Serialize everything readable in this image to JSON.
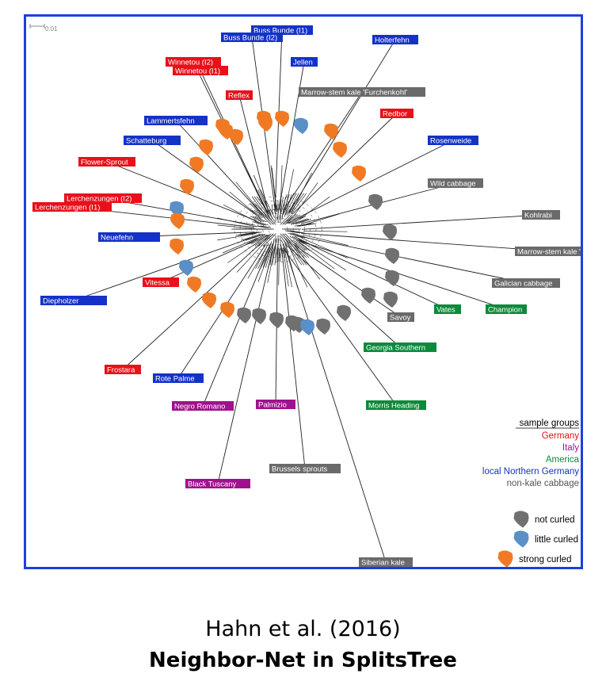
{
  "scale_label": "0.01",
  "colors": {
    "frame": "#1d3fe0",
    "Germany": "#e8101a",
    "Italy": "#a0118d",
    "America": "#0c8a3c",
    "local_northern_germany": "#1432c8",
    "non_kale_cabbage": "#6a6a6a",
    "not_curled": "#707070",
    "little_curled": "#5b8fc8",
    "strong_curled": "#f07a24"
  },
  "taxa": [
    {
      "label": "Buss Bunde (I1)",
      "group": "local_northern_germany",
      "leaf": "strong_curled"
    },
    {
      "label": "Buss Bunde (I2)",
      "group": "local_northern_germany",
      "leaf": "strong_curled"
    },
    {
      "label": "Holterfehn",
      "group": "local_northern_germany",
      "leaf": "strong_curled"
    },
    {
      "label": "Jellen",
      "group": "local_northern_germany",
      "leaf": "strong_curled"
    },
    {
      "label": "Winnetou (I2)",
      "group": "Germany",
      "leaf": "strong_curled"
    },
    {
      "label": "Winnetou (I1)",
      "group": "Germany",
      "leaf": "strong_curled"
    },
    {
      "label": "Marrow-stem kale 'Furchenkohl'",
      "group": "non_kale_cabbage",
      "leaf": "little_curled"
    },
    {
      "label": "Reflex",
      "group": "Germany",
      "leaf": "strong_curled"
    },
    {
      "label": "Redbor",
      "group": "Germany",
      "leaf": "strong_curled"
    },
    {
      "label": "Lammertsfehn",
      "group": "local_northern_germany",
      "leaf": "strong_curled"
    },
    {
      "label": "Rosenweide",
      "group": "local_northern_germany",
      "leaf": "strong_curled"
    },
    {
      "label": "Schatteburg",
      "group": "local_northern_germany",
      "leaf": "strong_curled"
    },
    {
      "label": "Flower-Sprout",
      "group": "Germany",
      "leaf": "strong_curled"
    },
    {
      "label": "Wild cabbage",
      "group": "non_kale_cabbage",
      "leaf": "not_curled"
    },
    {
      "label": "Lerchenzungen (I2)",
      "group": "Germany",
      "leaf": "little_curled"
    },
    {
      "label": "Lerchenzungen (I1)",
      "group": "Germany",
      "leaf": "strong_curled"
    },
    {
      "label": "Kohlrabi",
      "group": "non_kale_cabbage",
      "leaf": "not_curled"
    },
    {
      "label": "Neuefehn",
      "group": "local_northern_germany",
      "leaf": "strong_curled"
    },
    {
      "label": "Marrow-stem kale 'Walking Stick'",
      "group": "non_kale_cabbage",
      "leaf": "not_curled"
    },
    {
      "label": "Diepholzer",
      "group": "local_northern_germany",
      "leaf": "little_curled"
    },
    {
      "label": "Vitessa",
      "group": "Germany",
      "leaf": "strong_curled"
    },
    {
      "label": "Galician cabbage",
      "group": "non_kale_cabbage",
      "leaf": "not_curled"
    },
    {
      "label": "Vates",
      "group": "America",
      "leaf": "not_curled"
    },
    {
      "label": "Champion",
      "group": "America",
      "leaf": "not_curled"
    },
    {
      "label": "Savoy",
      "group": "non_kale_cabbage",
      "leaf": "not_curled"
    },
    {
      "label": "Georgia Southern",
      "group": "America",
      "leaf": "not_curled"
    },
    {
      "label": "Frostara",
      "group": "Germany",
      "leaf": "strong_curled"
    },
    {
      "label": "Rote Palme",
      "group": "local_northern_germany",
      "leaf": "strong_curled"
    },
    {
      "label": "Negro Romano",
      "group": "Italy",
      "leaf": "not_curled"
    },
    {
      "label": "Palmizio",
      "group": "Italy",
      "leaf": "not_curled"
    },
    {
      "label": "Morris Heading",
      "group": "America",
      "leaf": "not_curled"
    },
    {
      "label": "Brussels sprouts",
      "group": "non_kale_cabbage",
      "leaf": "not_curled"
    },
    {
      "label": "Black Tuscany",
      "group": "Italy",
      "leaf": "not_curled"
    },
    {
      "label": "Siberian kale",
      "group": "non_kale_cabbage",
      "leaf": "little_curled"
    }
  ],
  "legend": {
    "title": "sample groups",
    "groups": [
      {
        "label": "Germany",
        "color": "#e8101a"
      },
      {
        "label": "Italy",
        "color": "#a0118d"
      },
      {
        "label": "America",
        "color": "#0c8a3c"
      },
      {
        "label": "local Northern Germany",
        "color": "#1432c8"
      },
      {
        "label": "non-kale cabbage",
        "color": "#555555"
      }
    ],
    "leaf_types": [
      {
        "label": "not curled",
        "color": "#707070"
      },
      {
        "label": "little curled",
        "color": "#5b8fc8"
      },
      {
        "label": "strong curled",
        "color": "#f07a24"
      }
    ]
  },
  "caption": {
    "citation": "Hahn et al. (2016)",
    "subtitle": "Neighbor-Net in SplitsTree"
  }
}
